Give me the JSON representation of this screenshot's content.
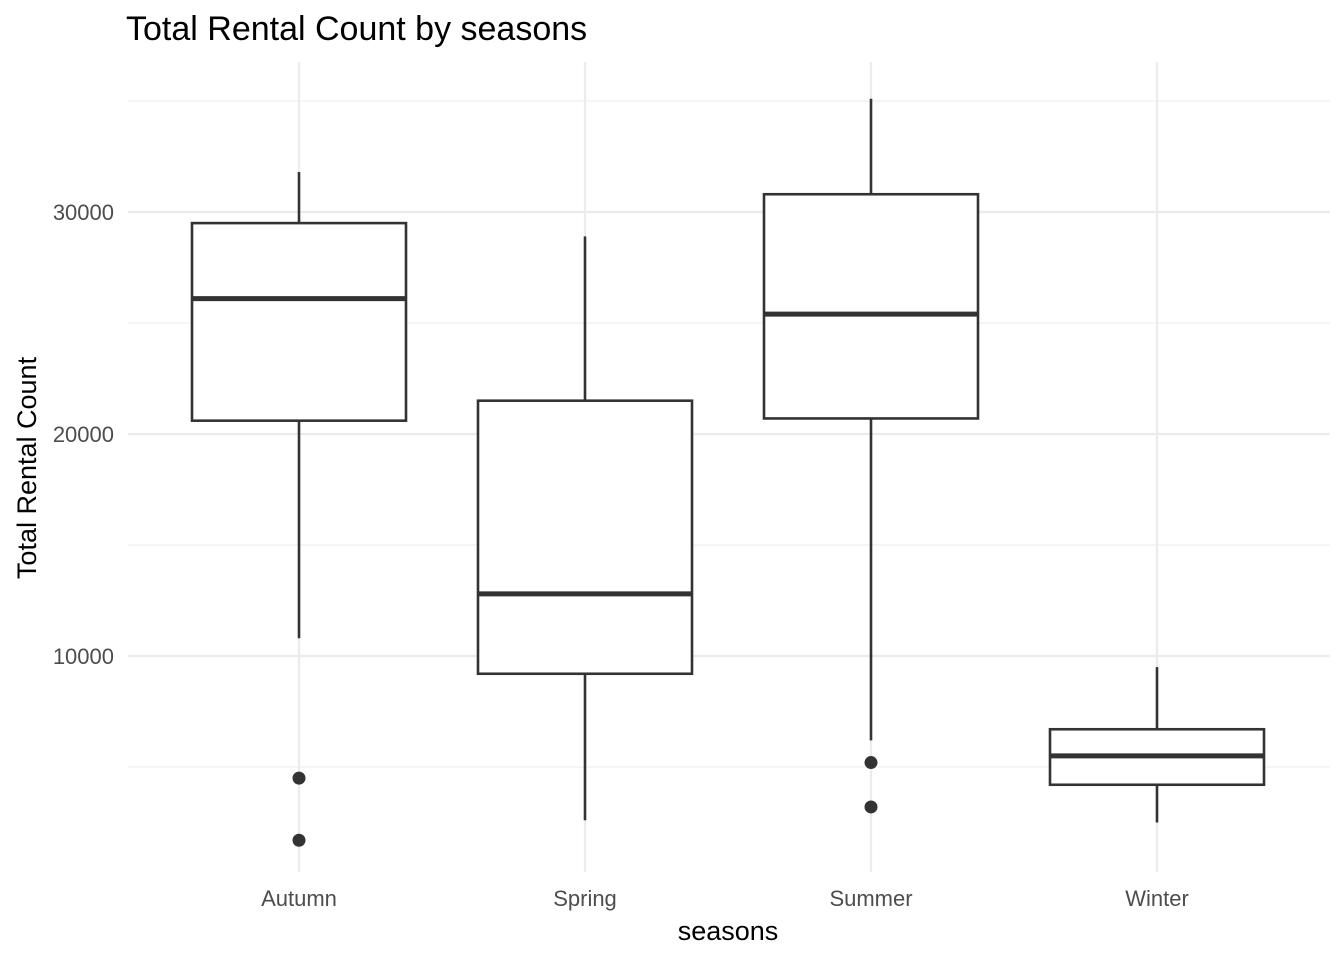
{
  "chart_data": {
    "type": "boxplot",
    "title": "Total Rental Count by seasons",
    "xlabel": "seasons",
    "ylabel": "Total Rental Count",
    "categories": [
      "Autumn",
      "Spring",
      "Summer",
      "Winter"
    ],
    "y_ticks": [
      10000,
      20000,
      30000
    ],
    "y_tick_labels": [
      "10000",
      "20000",
      "30000"
    ],
    "ylim": [
      0,
      36500
    ],
    "grid": true,
    "legend": "none",
    "boxes": [
      {
        "category": "Autumn",
        "whisker_low": 10800,
        "q1": 20600,
        "median": 26100,
        "q3": 29500,
        "whisker_high": 31800,
        "outliers": [
          4500,
          1700
        ]
      },
      {
        "category": "Spring",
        "whisker_low": 2600,
        "q1": 9200,
        "median": 12800,
        "q3": 21500,
        "whisker_high": 28900,
        "outliers": []
      },
      {
        "category": "Summer",
        "whisker_low": 6200,
        "q1": 20700,
        "median": 25400,
        "q3": 30800,
        "whisker_high": 35100,
        "outliers": [
          5200,
          3200
        ]
      },
      {
        "category": "Winter",
        "whisker_low": 2500,
        "q1": 4200,
        "median": 5500,
        "q3": 6700,
        "whisker_high": 9500,
        "outliers": []
      }
    ],
    "colors": {
      "box_stroke": "#333333",
      "box_fill": "#ffffff",
      "grid": "#ebebeb",
      "tick_text": "#4d4d4d",
      "text": "#000000"
    }
  }
}
